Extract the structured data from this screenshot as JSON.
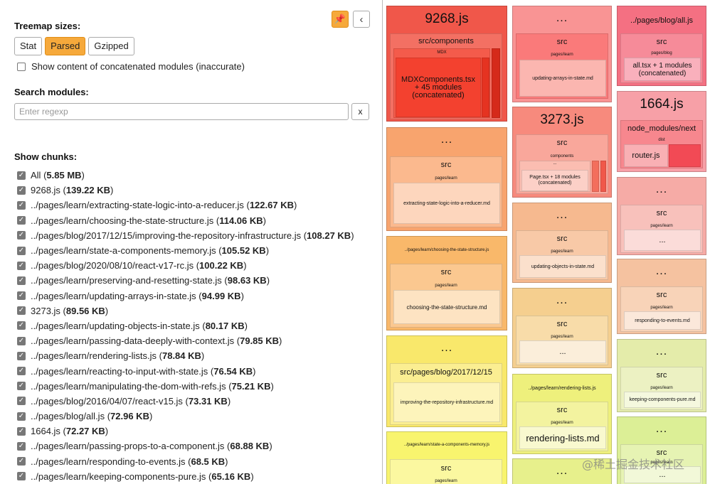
{
  "sidebar": {
    "pin_icon": "📌",
    "collapse_icon": "‹",
    "treemap_sizes_label": "Treemap sizes:",
    "size_buttons": [
      "Stat",
      "Parsed",
      "Gzipped"
    ],
    "active_size": "Parsed",
    "concat_label": "Show content of concatenated modules (inaccurate)",
    "search_label": "Search modules:",
    "search_placeholder": "Enter regexp",
    "search_clear": "x",
    "chunks_label": "Show chunks:",
    "chunks": [
      {
        "name": "All",
        "size": "5.85 MB"
      },
      {
        "name": "9268.js",
        "size": "139.22 KB"
      },
      {
        "name": "../pages/learn/extracting-state-logic-into-a-reducer.js",
        "size": "122.67 KB"
      },
      {
        "name": "../pages/learn/choosing-the-state-structure.js",
        "size": "114.06 KB"
      },
      {
        "name": "../pages/blog/2017/12/15/improving-the-repository-infrastructure.js",
        "size": "108.27 KB"
      },
      {
        "name": "../pages/learn/state-a-components-memory.js",
        "size": "105.52 KB"
      },
      {
        "name": "../pages/blog/2020/08/10/react-v17-rc.js",
        "size": "100.22 KB"
      },
      {
        "name": "../pages/learn/preserving-and-resetting-state.js",
        "size": "98.63 KB"
      },
      {
        "name": "../pages/learn/updating-arrays-in-state.js",
        "size": "94.99 KB"
      },
      {
        "name": "3273.js",
        "size": "89.56 KB"
      },
      {
        "name": "../pages/learn/updating-objects-in-state.js",
        "size": "80.17 KB"
      },
      {
        "name": "../pages/learn/passing-data-deeply-with-context.js",
        "size": "79.85 KB"
      },
      {
        "name": "../pages/learn/rendering-lists.js",
        "size": "78.84 KB"
      },
      {
        "name": "../pages/learn/reacting-to-input-with-state.js",
        "size": "76.54 KB"
      },
      {
        "name": "../pages/learn/manipulating-the-dom-with-refs.js",
        "size": "75.21 KB"
      },
      {
        "name": "../pages/blog/2016/04/07/react-v15.js",
        "size": "73.31 KB"
      },
      {
        "name": "../pages/blog/all.js",
        "size": "72.96 KB"
      },
      {
        "name": "1664.js",
        "size": "72.27 KB"
      },
      {
        "name": "../pages/learn/passing-props-to-a-component.js",
        "size": "68.88 KB"
      },
      {
        "name": "../pages/learn/responding-to-events.js",
        "size": "68.5 KB"
      },
      {
        "name": "../pages/learn/keeping-components-pure.js",
        "size": "65.16 KB"
      }
    ]
  },
  "treemap": {
    "ellipsis": "...",
    "cells": {
      "c9268": {
        "title": "9268.js",
        "sub": "src/components",
        "mid": "MDX",
        "leaf": "MDXComponents.tsx\n+ 45 modules\n(concatenated)"
      },
      "cUpd": {
        "title": "...",
        "sub": "src",
        "mid": "pages/learn",
        "leaf": "updating-arrays-in-state.md"
      },
      "cBlogAll": {
        "title": "../pages/blog/all.js",
        "sub": "src",
        "mid": "pages/blog",
        "leaf": "all.tsx + 1 modules\n(concatenated)"
      },
      "cExt": {
        "title": "...",
        "sub": "src",
        "mid": "pages/learn",
        "leaf": "extracting-state-logic-into-a-reducer.md"
      },
      "c3273": {
        "title": "3273.js",
        "sub": "src",
        "mid": "components",
        "mid2": "...",
        "leaf": "Page.tsx + 18 modules\n(concatenated)"
      },
      "c1664": {
        "title": "1664.js",
        "sub": "node_modules/next",
        "mid": "dist",
        "leaf": "router.js"
      },
      "cR3a": {
        "title": "...",
        "sub": "src",
        "mid": "pages/learn",
        "leaf": "..."
      },
      "cUpdObj": {
        "title": "...",
        "sub": "src",
        "mid": "pages/learn",
        "leaf": "updating-objects-in-state.md"
      },
      "cChoose": {
        "title": "../pages/learn/choosing-the-state-structure.js",
        "sub": "src",
        "mid": "pages/learn",
        "leaf": "choosing-the-state-structure.md"
      },
      "cResp": {
        "title": "...",
        "sub": "src",
        "mid": "pages/learn",
        "leaf": "responding-to-events.md"
      },
      "cM3": {
        "title": "...",
        "sub": "src",
        "mid": "pages/learn",
        "leaf": "..."
      },
      "cImprove": {
        "title": "...",
        "sub": "src/pages/blog/2017/12/15",
        "leaf": "improving-the-repository-infrastructure.md"
      },
      "cPure": {
        "title": "...",
        "sub": "src",
        "mid": "pages/learn",
        "leaf": "keeping-components-pure.md"
      },
      "cRender": {
        "title": "../pages/learn/rendering-lists.js",
        "sub": "src",
        "mid": "pages/learn",
        "leaf": "rendering-lists.md"
      },
      "cStateMem": {
        "title": "../pages/learn/state-a-components-memory.js",
        "sub": "src",
        "mid": "pages/learn"
      },
      "cR3e": {
        "title": "...",
        "sub": "src",
        "mid": "pages/learn",
        "leaf": "..."
      },
      "cM4": {
        "title": "..."
      }
    },
    "watermark": "@稀土掘金技术社区"
  },
  "colors": {
    "accent": "#f6a93b",
    "checkbox": "#777777"
  }
}
